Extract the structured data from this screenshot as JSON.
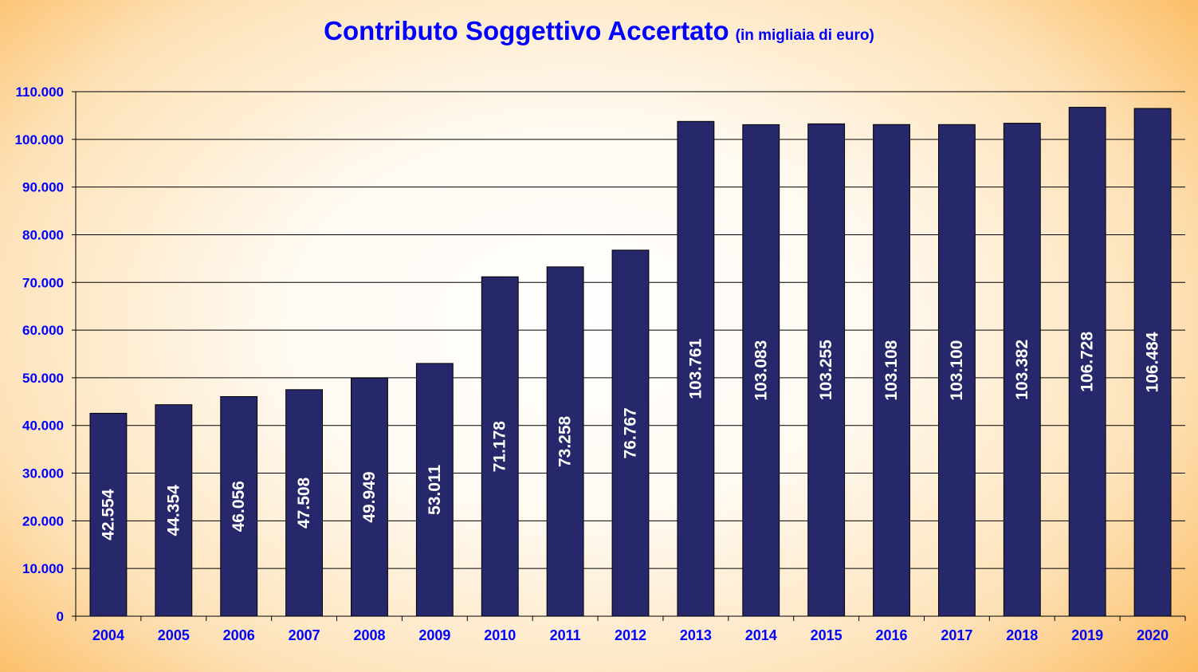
{
  "title": "Contributo Soggettivo Accertato",
  "subtitle": "(in migliaia di euro)",
  "colors": {
    "bar_fill": "#27276b",
    "bar_stroke": "#000000",
    "text_accent": "#0000ff",
    "data_label": "#ffffff",
    "background_center": "#ffffff",
    "background_edge": "#f99a10"
  },
  "chart_data": {
    "type": "bar",
    "title": "Contributo Soggettivo Accertato",
    "subtitle": "(in migliaia di euro)",
    "xlabel": "",
    "ylabel": "",
    "categories": [
      "2004",
      "2005",
      "2006",
      "2007",
      "2008",
      "2009",
      "2010",
      "2011",
      "2012",
      "2013",
      "2014",
      "2015",
      "2016",
      "2017",
      "2018",
      "2019",
      "2020"
    ],
    "values": [
      42554,
      44354,
      46056,
      47508,
      49949,
      53011,
      71178,
      73258,
      76767,
      103761,
      103083,
      103255,
      103108,
      103100,
      103382,
      106728,
      106484
    ],
    "data_labels": [
      "42.554",
      "44.354",
      "46.056",
      "47.508",
      "49.949",
      "53.011",
      "71.178",
      "73.258",
      "76.767",
      "103.761",
      "103.083",
      "103.255",
      "103.108",
      "103.100",
      "103.382",
      "106.728",
      "106.484"
    ],
    "ylim": [
      0,
      110000
    ],
    "yticks": [
      0,
      10000,
      20000,
      30000,
      40000,
      50000,
      60000,
      70000,
      80000,
      90000,
      100000,
      110000
    ],
    "ytick_labels": [
      "0",
      "10.000",
      "20.000",
      "30.000",
      "40.000",
      "50.000",
      "60.000",
      "70.000",
      "80.000",
      "90.000",
      "100.000",
      "110.000"
    ],
    "grid": true,
    "legend": "none"
  }
}
